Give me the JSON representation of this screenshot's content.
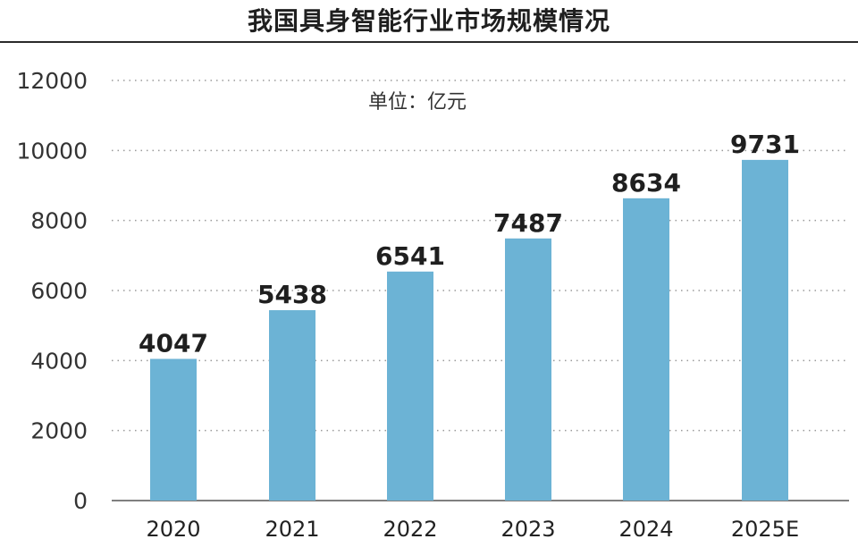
{
  "chart_data": {
    "type": "bar",
    "title": "我国具身智能行业市场规模情况",
    "unit_label": "单位：亿元",
    "categories": [
      "2020",
      "2021",
      "2022",
      "2023",
      "2024",
      "2025E"
    ],
    "values": [
      4047,
      5438,
      6541,
      7487,
      8634,
      9731
    ],
    "data_labels": [
      "4047",
      "5438",
      "6541",
      "7487",
      "8634",
      "9731"
    ],
    "ylim": [
      0,
      12000
    ],
    "yticks": [
      "0",
      "2000",
      "4000",
      "6000",
      "8000",
      "10000",
      "12000"
    ],
    "ytick_values": [
      0,
      2000,
      4000,
      6000,
      8000,
      10000,
      12000
    ],
    "grid": true,
    "bar_color": "#6cb3d5",
    "grid_color": "#9a9a9a"
  }
}
